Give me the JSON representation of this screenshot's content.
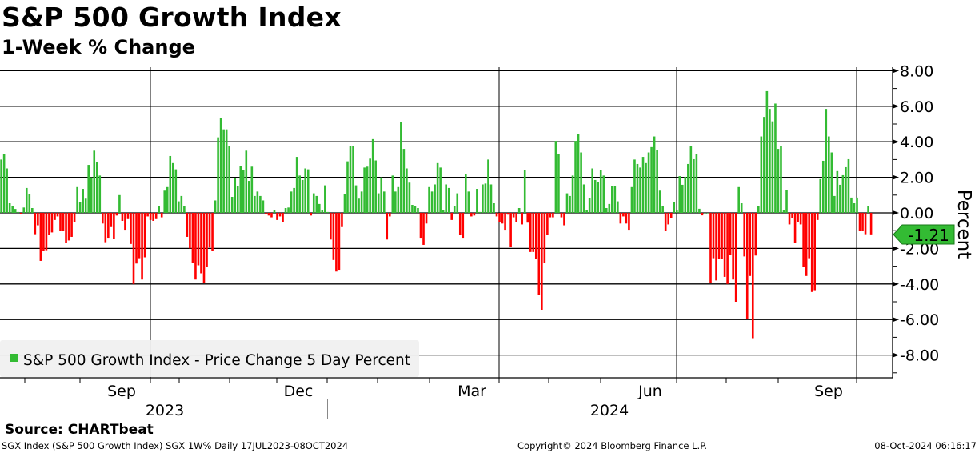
{
  "header": {
    "title": "S&P 500 Growth Index",
    "subtitle": "1-Week % Change"
  },
  "footer": {
    "source": "Source: CHARTbeat",
    "description": "SGX Index (S&P 500 Growth Index) SGX 1W%  Daily 17JUL2023-08OCT2024",
    "copyright": "Copyright© 2024 Bloomberg Finance L.P.",
    "timestamp": "08-Oct-2024 06:16:17"
  },
  "colors": {
    "positive": "#33bb33",
    "negative": "#ff0000",
    "legend_bg": "#f0f0f0"
  },
  "chart_data": {
    "type": "bar",
    "title": "S&P 500 Growth Index",
    "subtitle": "1-Week % Change",
    "ylabel": "Percent",
    "ylim": [
      -9,
      8.5
    ],
    "y_ticks": [
      "8.00",
      "6.00",
      "4.00",
      "2.00",
      "0.00",
      "-2.00",
      "-4.00",
      "-6.00",
      "-8.00"
    ],
    "x_month_labels": [
      "Sep",
      "Dec",
      "Mar",
      "Jun",
      "Sep"
    ],
    "x_year_labels": [
      "2023",
      "2024"
    ],
    "x_range": [
      "17JUL2023",
      "08OCT2024"
    ],
    "grid": true,
    "legend": {
      "position": "bottom-left",
      "entries": [
        "S&P 500 Growth Index - Price Change 5 Day Percent"
      ]
    },
    "last_value_label": "-1.21",
    "series": [
      {
        "name": "S&P 500 Growth Index - Price Change 5 Day Percent",
        "values": [
          3.0,
          3.3,
          2.5,
          0.54,
          0.36,
          0.22,
          0.05,
          -0.05,
          0.3,
          1.4,
          1.04,
          0.27,
          -1.2,
          -0.7,
          -2.7,
          -2.15,
          -2.1,
          -1.25,
          -1.1,
          -0.4,
          -0.2,
          -1.0,
          -1.0,
          -1.7,
          -1.55,
          -1.35,
          -0.5,
          1.45,
          0.6,
          1.35,
          0.8,
          2.7,
          2.0,
          3.5,
          2.85,
          2.1,
          -0.6,
          -1.65,
          -1.4,
          -0.8,
          -1.45,
          -0.15,
          1.0,
          -0.45,
          -0.95,
          -0.35,
          -1.75,
          -4.0,
          -2.85,
          -2.55,
          -3.75,
          -2.5,
          -0.2,
          -0.4,
          -0.45,
          -0.35,
          0.36,
          -0.25,
          1.25,
          1.45,
          3.2,
          2.8,
          2.45,
          0.65,
          0.95,
          0.36,
          -1.35,
          -2.0,
          -2.8,
          -3.75,
          -2.95,
          -3.4,
          -3.95,
          -3.05,
          -1.95,
          -2.15,
          0.7,
          4.25,
          5.35,
          4.7,
          4.7,
          3.75,
          0.9,
          1.95,
          1.5,
          2.65,
          2.4,
          3.5,
          1.8,
          2.6,
          0.95,
          1.2,
          0.95,
          0.7,
          -0.05,
          -0.15,
          -0.25,
          0.18,
          -0.4,
          -0.2,
          -0.5,
          0.27,
          0.3,
          1.2,
          1.4,
          3.15,
          2.1,
          1.85,
          2.5,
          2.45,
          -0.15,
          1.1,
          0.95,
          0.5,
          0.18,
          1.55,
          0.05,
          -1.5,
          -2.65,
          -3.3,
          -3.2,
          -0.8,
          1.04,
          2.9,
          3.75,
          3.75,
          1.55,
          0.8,
          1.2,
          2.55,
          2.6,
          3.05,
          4.15,
          2.95,
          1.1,
          2.0,
          1.2,
          -1.5,
          -0.2,
          2.1,
          1.2,
          1.45,
          5.1,
          3.6,
          2.5,
          1.7,
          0.45,
          0.36,
          0.27,
          -1.4,
          -1.8,
          -0.6,
          1.45,
          1.2,
          1.6,
          2.8,
          2.55,
          0.18,
          1.6,
          1.4,
          -0.4,
          0.4,
          1.1,
          -1.25,
          -1.4,
          2.2,
          1.2,
          -0.2,
          -0.15,
          1.35,
          0.05,
          1.6,
          1.65,
          3.0,
          1.6,
          0.54,
          -0.2,
          -0.5,
          -0.6,
          -0.95,
          -0.1,
          -1.9,
          -0.25,
          -0.5,
          0.27,
          -0.65,
          2.4,
          -0.55,
          -2.2,
          -2.2,
          -2.6,
          -4.6,
          -5.45,
          -2.8,
          -1.25,
          -0.25,
          -0.25,
          4.05,
          3.3,
          -0.25,
          -0.7,
          1.1,
          0.95,
          2.1,
          4.05,
          4.45,
          3.4,
          1.6,
          0.18,
          0.85,
          2.5,
          1.85,
          1.75,
          2.4,
          2.1,
          0.27,
          0.5,
          1.5,
          1.5,
          0.65,
          -0.6,
          -0.2,
          -0.6,
          -0.95,
          1.45,
          3.0,
          2.75,
          2.55,
          3.15,
          2.8,
          3.4,
          3.7,
          4.3,
          3.55,
          1.25,
          0.36,
          -1.0,
          -0.65,
          -0.3,
          0.63,
          0.14,
          2.07,
          1.58,
          2.03,
          2.75,
          3.74,
          3.02,
          3.33,
          0.23,
          -0.14,
          0,
          0,
          -3.95,
          -2.55,
          -3.8,
          -2.6,
          -2.6,
          -3.6,
          -4.0,
          -2.35,
          -3.75,
          -5.0,
          1.45,
          0.54,
          -2.45,
          -5.95,
          -3.55,
          -7.05,
          -2.4,
          0.4,
          4.3,
          5.4,
          6.85,
          5.85,
          5.15,
          6.15,
          3.6,
          3.75,
          0.14,
          1.3,
          -0.65,
          -0.3,
          -1.7,
          -0.5,
          -0.65,
          -3.05,
          -3.55,
          -2.55,
          -4.45,
          -4.35,
          -0.4,
          1.9,
          2.93,
          5.85,
          4.3,
          3.4,
          0.95,
          2.35,
          1.58,
          2.12,
          2.57,
          3.02,
          0.86,
          0.54,
          0.86,
          -1.0,
          -1.0,
          -1.2,
          0.36,
          -1.21
        ]
      }
    ]
  }
}
